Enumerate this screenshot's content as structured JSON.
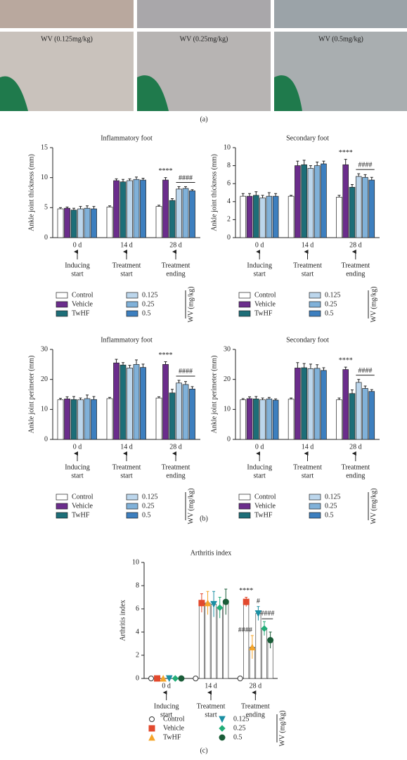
{
  "figure": {
    "photo_labels": [
      "WV (0.125mg/kg)",
      "WV (0.25mg/kg)",
      "WV (0.5mg/kg)"
    ],
    "panel_labels": [
      "(a)",
      "(b)",
      "(c)"
    ]
  },
  "chart_data": [
    {
      "type": "bar",
      "title": "Inflammatory foot",
      "y_label": "Ankle joint thickness (mm)",
      "categories": [
        "0 d",
        "14 d",
        "28 d"
      ],
      "phases": [
        [
          "Inducing",
          "start"
        ],
        [
          "Treatment",
          "start"
        ],
        [
          "Treatment",
          "ending"
        ]
      ],
      "ylim": [
        0,
        15
      ],
      "yticks": [
        0,
        5,
        10,
        15
      ],
      "legend_group_label": "WV (mg/kg)",
      "annotations": [
        "****",
        "####"
      ],
      "series": [
        {
          "name": "Control",
          "color": "#ffffff",
          "values": [
            4.8,
            5.1,
            5.2
          ],
          "errors": [
            0.2,
            0.2,
            0.2
          ]
        },
        {
          "name": "Vehicle",
          "color": "#6b2d8c",
          "values": [
            4.9,
            9.5,
            9.6
          ],
          "errors": [
            0.2,
            0.3,
            0.4
          ]
        },
        {
          "name": "TwHF",
          "color": "#1d6e78",
          "values": [
            4.6,
            9.3,
            6.2
          ],
          "errors": [
            0.3,
            0.4,
            0.3
          ]
        },
        {
          "name": "0.125",
          "color": "#bcd6ec",
          "values": [
            4.8,
            9.5,
            8.1
          ],
          "errors": [
            0.4,
            0.3,
            0.4
          ]
        },
        {
          "name": "0.25",
          "color": "#80b1d9",
          "values": [
            4.9,
            9.7,
            8.2
          ],
          "errors": [
            0.4,
            0.4,
            0.3
          ]
        },
        {
          "name": "0.5",
          "color": "#3d7fbf",
          "values": [
            4.8,
            9.6,
            7.8
          ],
          "errors": [
            0.4,
            0.3,
            0.2
          ]
        }
      ]
    },
    {
      "type": "bar",
      "title": "Secondary foot",
      "y_label": "Ankle joint thickness (mm)",
      "categories": [
        "0 d",
        "14 d",
        "28 d"
      ],
      "phases": [
        [
          "Inducing",
          "start"
        ],
        [
          "Treatment",
          "start"
        ],
        [
          "Treatment",
          "ending"
        ]
      ],
      "ylim": [
        0,
        10
      ],
      "yticks": [
        0,
        2,
        4,
        6,
        8,
        10
      ],
      "legend_group_label": "WV (mg/kg)",
      "annotations": [
        "****",
        "####"
      ],
      "series": [
        {
          "name": "Control",
          "color": "#ffffff",
          "values": [
            4.6,
            4.6,
            4.5
          ],
          "errors": [
            0.3,
            0.1,
            0.2
          ]
        },
        {
          "name": "Vehicle",
          "color": "#6b2d8c",
          "values": [
            4.6,
            8.0,
            8.1
          ],
          "errors": [
            0.3,
            0.5,
            0.6
          ]
        },
        {
          "name": "TwHF",
          "color": "#1d6e78",
          "values": [
            4.7,
            8.1,
            5.6
          ],
          "errors": [
            0.4,
            0.5,
            0.3
          ]
        },
        {
          "name": "0.125",
          "color": "#bcd6ec",
          "values": [
            4.4,
            7.7,
            6.8
          ],
          "errors": [
            0.3,
            0.3,
            0.3
          ]
        },
        {
          "name": "0.25",
          "color": "#80b1d9",
          "values": [
            4.6,
            8.0,
            6.7
          ],
          "errors": [
            0.4,
            0.4,
            0.3
          ]
        },
        {
          "name": "0.5",
          "color": "#3d7fbf",
          "values": [
            4.6,
            8.2,
            6.4
          ],
          "errors": [
            0.3,
            0.3,
            0.3
          ]
        }
      ]
    },
    {
      "type": "bar",
      "title": "Inflammatory foot",
      "y_label": "Ankle joint perimeter (mm)",
      "categories": [
        "0 d",
        "14 d",
        "28 d"
      ],
      "phases": [
        [
          "Inducing",
          "start"
        ],
        [
          "Treatment",
          "start"
        ],
        [
          "Treatment",
          "ending"
        ]
      ],
      "ylim": [
        0,
        30
      ],
      "yticks": [
        0,
        10,
        20,
        30
      ],
      "legend_group_label": "WV (mg/kg)",
      "annotations": [
        "****",
        "####"
      ],
      "series": [
        {
          "name": "Control",
          "color": "#ffffff",
          "values": [
            13.2,
            13.6,
            13.8
          ],
          "errors": [
            0.5,
            0.4,
            0.4
          ]
        },
        {
          "name": "Vehicle",
          "color": "#6b2d8c",
          "values": [
            13.5,
            25.5,
            25.0
          ],
          "errors": [
            0.7,
            1.2,
            0.9
          ]
        },
        {
          "name": "TwHF",
          "color": "#1d6e78",
          "values": [
            13.3,
            24.8,
            15.5
          ],
          "errors": [
            1.0,
            0.8,
            1.2
          ]
        },
        {
          "name": "0.125",
          "color": "#bcd6ec",
          "values": [
            13.2,
            23.8,
            18.8
          ],
          "errors": [
            0.6,
            0.9,
            0.9
          ]
        },
        {
          "name": "0.25",
          "color": "#80b1d9",
          "values": [
            13.6,
            25.0,
            18.3
          ],
          "errors": [
            1.2,
            1.5,
            1.0
          ]
        },
        {
          "name": "0.5",
          "color": "#3d7fbf",
          "values": [
            13.3,
            24.0,
            16.8
          ],
          "errors": [
            1.0,
            1.1,
            0.8
          ]
        }
      ]
    },
    {
      "type": "bar",
      "title": "Secondary foot",
      "y_label": "Ankle joint perimeter (mm)",
      "categories": [
        "0 d",
        "14 d",
        "28 d"
      ],
      "phases": [
        [
          "Inducing",
          "start"
        ],
        [
          "Treatment",
          "start"
        ],
        [
          "Treatment",
          "ending"
        ]
      ],
      "ylim": [
        0,
        30
      ],
      "yticks": [
        0,
        10,
        20,
        30
      ],
      "legend_group_label": "WV (mg/kg)",
      "annotations": [
        "****",
        "####"
      ],
      "series": [
        {
          "name": "Control",
          "color": "#ffffff",
          "values": [
            13.2,
            13.4,
            13.2
          ],
          "errors": [
            0.4,
            0.4,
            0.6
          ]
        },
        {
          "name": "Vehicle",
          "color": "#6b2d8c",
          "values": [
            13.6,
            23.8,
            23.3
          ],
          "errors": [
            0.6,
            1.8,
            0.8
          ]
        },
        {
          "name": "TwHF",
          "color": "#1d6e78",
          "values": [
            13.5,
            23.9,
            15.3
          ],
          "errors": [
            0.8,
            1.4,
            1.2
          ]
        },
        {
          "name": "0.125",
          "color": "#bcd6ec",
          "values": [
            13.2,
            23.6,
            19.0
          ],
          "errors": [
            0.6,
            1.5,
            1.0
          ]
        },
        {
          "name": "0.25",
          "color": "#80b1d9",
          "values": [
            13.5,
            23.7,
            17.0
          ],
          "errors": [
            0.5,
            1.2,
            0.8
          ]
        },
        {
          "name": "0.5",
          "color": "#3d7fbf",
          "values": [
            13.1,
            23.0,
            16.0
          ],
          "errors": [
            0.4,
            0.9,
            0.6
          ]
        }
      ]
    },
    {
      "type": "marker_bar",
      "title": "Arthritis index",
      "y_label": "Arthritis index",
      "categories": [
        "0 d",
        "14 d",
        "28 d"
      ],
      "phases": [
        [
          "Inducing",
          "start"
        ],
        [
          "Treatment",
          "start"
        ],
        [
          "Treatment",
          "ending"
        ]
      ],
      "ylim": [
        0,
        10
      ],
      "yticks": [
        0,
        2,
        4,
        6,
        8,
        10
      ],
      "legend_group_label": "WV (mg/kg)",
      "annotations": [
        "****",
        "####",
        "#",
        "####"
      ],
      "series": [
        {
          "name": "Control",
          "color": "#555555",
          "marker": "open-circle",
          "values": [
            0,
            0,
            0
          ],
          "errors": [
            0,
            0,
            0
          ]
        },
        {
          "name": "Vehicle",
          "color": "#e2492d",
          "marker": "square",
          "values": [
            0,
            6.5,
            6.6
          ],
          "errors": [
            0,
            0.8,
            0.4
          ]
        },
        {
          "name": "TwHF",
          "color": "#f5a52a",
          "marker": "triangle",
          "values": [
            0,
            6.5,
            2.7
          ],
          "errors": [
            0,
            1.0,
            1.0
          ]
        },
        {
          "name": "0.125",
          "color": "#1a8fa3",
          "marker": "down-triangle",
          "values": [
            0,
            6.4,
            5.6
          ],
          "errors": [
            0,
            1.1,
            0.6
          ]
        },
        {
          "name": "0.25",
          "color": "#22ad78",
          "marker": "diamond",
          "values": [
            0,
            6.1,
            4.3
          ],
          "errors": [
            0,
            0.9,
            0.6
          ]
        },
        {
          "name": "0.5",
          "color": "#1a5c38",
          "marker": "circle",
          "values": [
            0,
            6.6,
            3.3
          ],
          "errors": [
            0,
            1.1,
            0.7
          ]
        }
      ]
    }
  ]
}
